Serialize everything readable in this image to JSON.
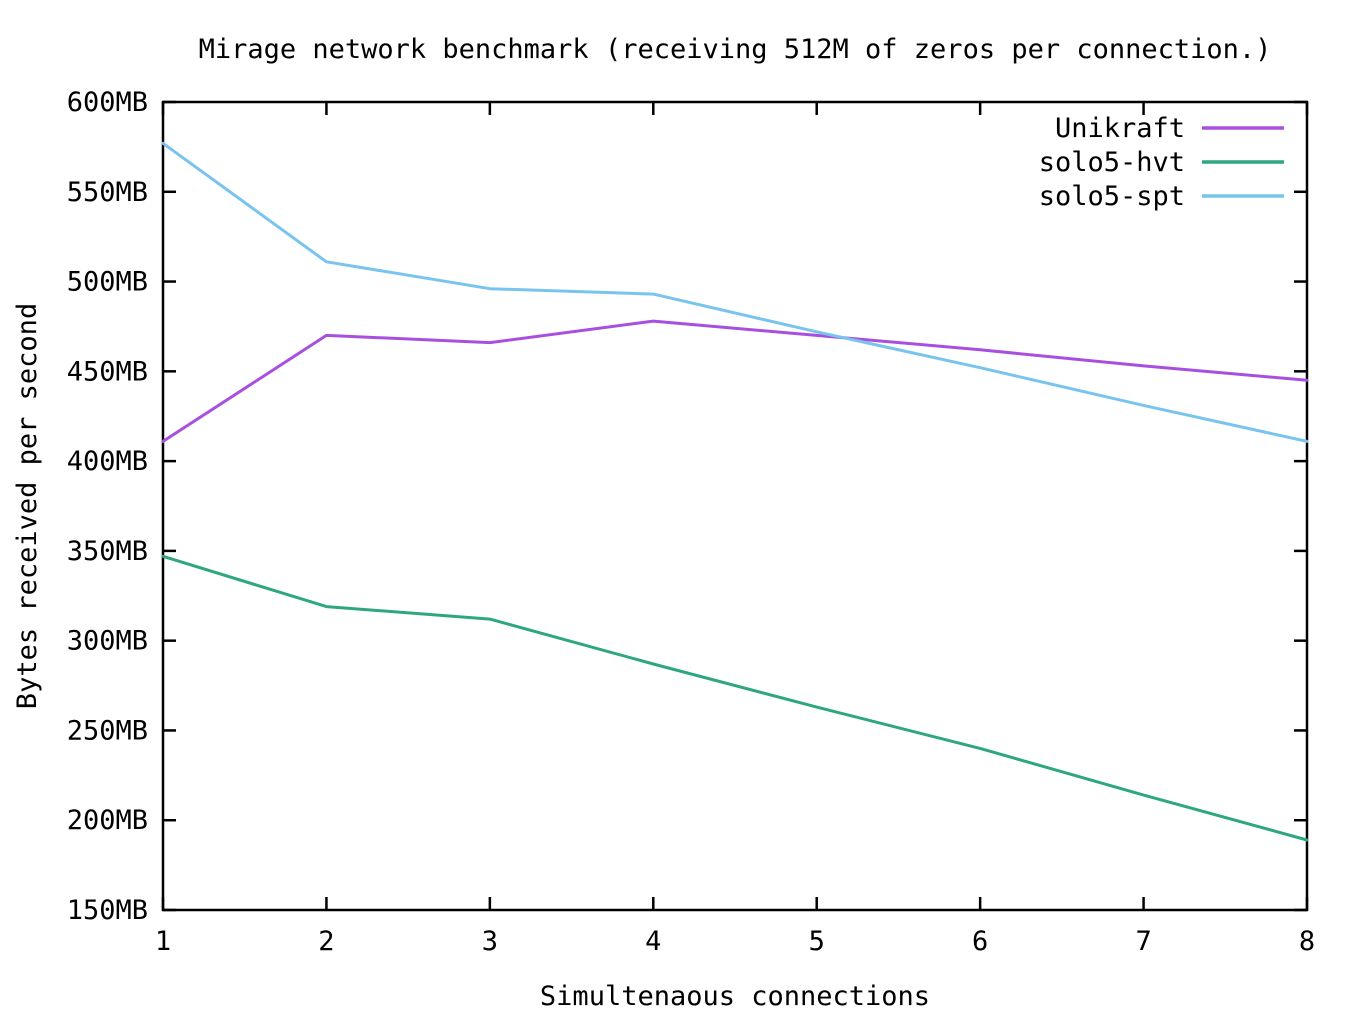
{
  "chart_data": {
    "type": "line",
    "title": "Mirage network benchmark (receiving 512M of zeros per connection.)",
    "xlabel": "Simultenaous connections",
    "ylabel": "Bytes received per second",
    "x": [
      1,
      2,
      3,
      4,
      5,
      6,
      7,
      8
    ],
    "xlim": [
      1,
      8
    ],
    "ylim": [
      150,
      600
    ],
    "xtick_labels": [
      "1",
      "2",
      "3",
      "4",
      "5",
      "6",
      "7",
      "8"
    ],
    "ytick_values": [
      150,
      200,
      250,
      300,
      350,
      400,
      450,
      500,
      550,
      600
    ],
    "ytick_labels": [
      "150MB",
      "200MB",
      "250MB",
      "300MB",
      "350MB",
      "400MB",
      "450MB",
      "500MB",
      "550MB",
      "600MB"
    ],
    "grid": false,
    "legend_position": "top-right-inside",
    "background_color": "#ffffff",
    "axis_color": "#000000",
    "series": [
      {
        "name": "Unikraft",
        "color": "#a94fdf",
        "values": [
          411,
          470,
          466,
          478,
          470,
          462,
          453,
          445
        ]
      },
      {
        "name": "solo5-hvt",
        "color": "#2ea682",
        "values": [
          347,
          319,
          312,
          287,
          263,
          240,
          214,
          189
        ]
      },
      {
        "name": "solo5-spt",
        "color": "#79c4ee",
        "values": [
          577,
          511,
          496,
          493,
          472,
          452,
          431,
          411
        ]
      }
    ]
  }
}
